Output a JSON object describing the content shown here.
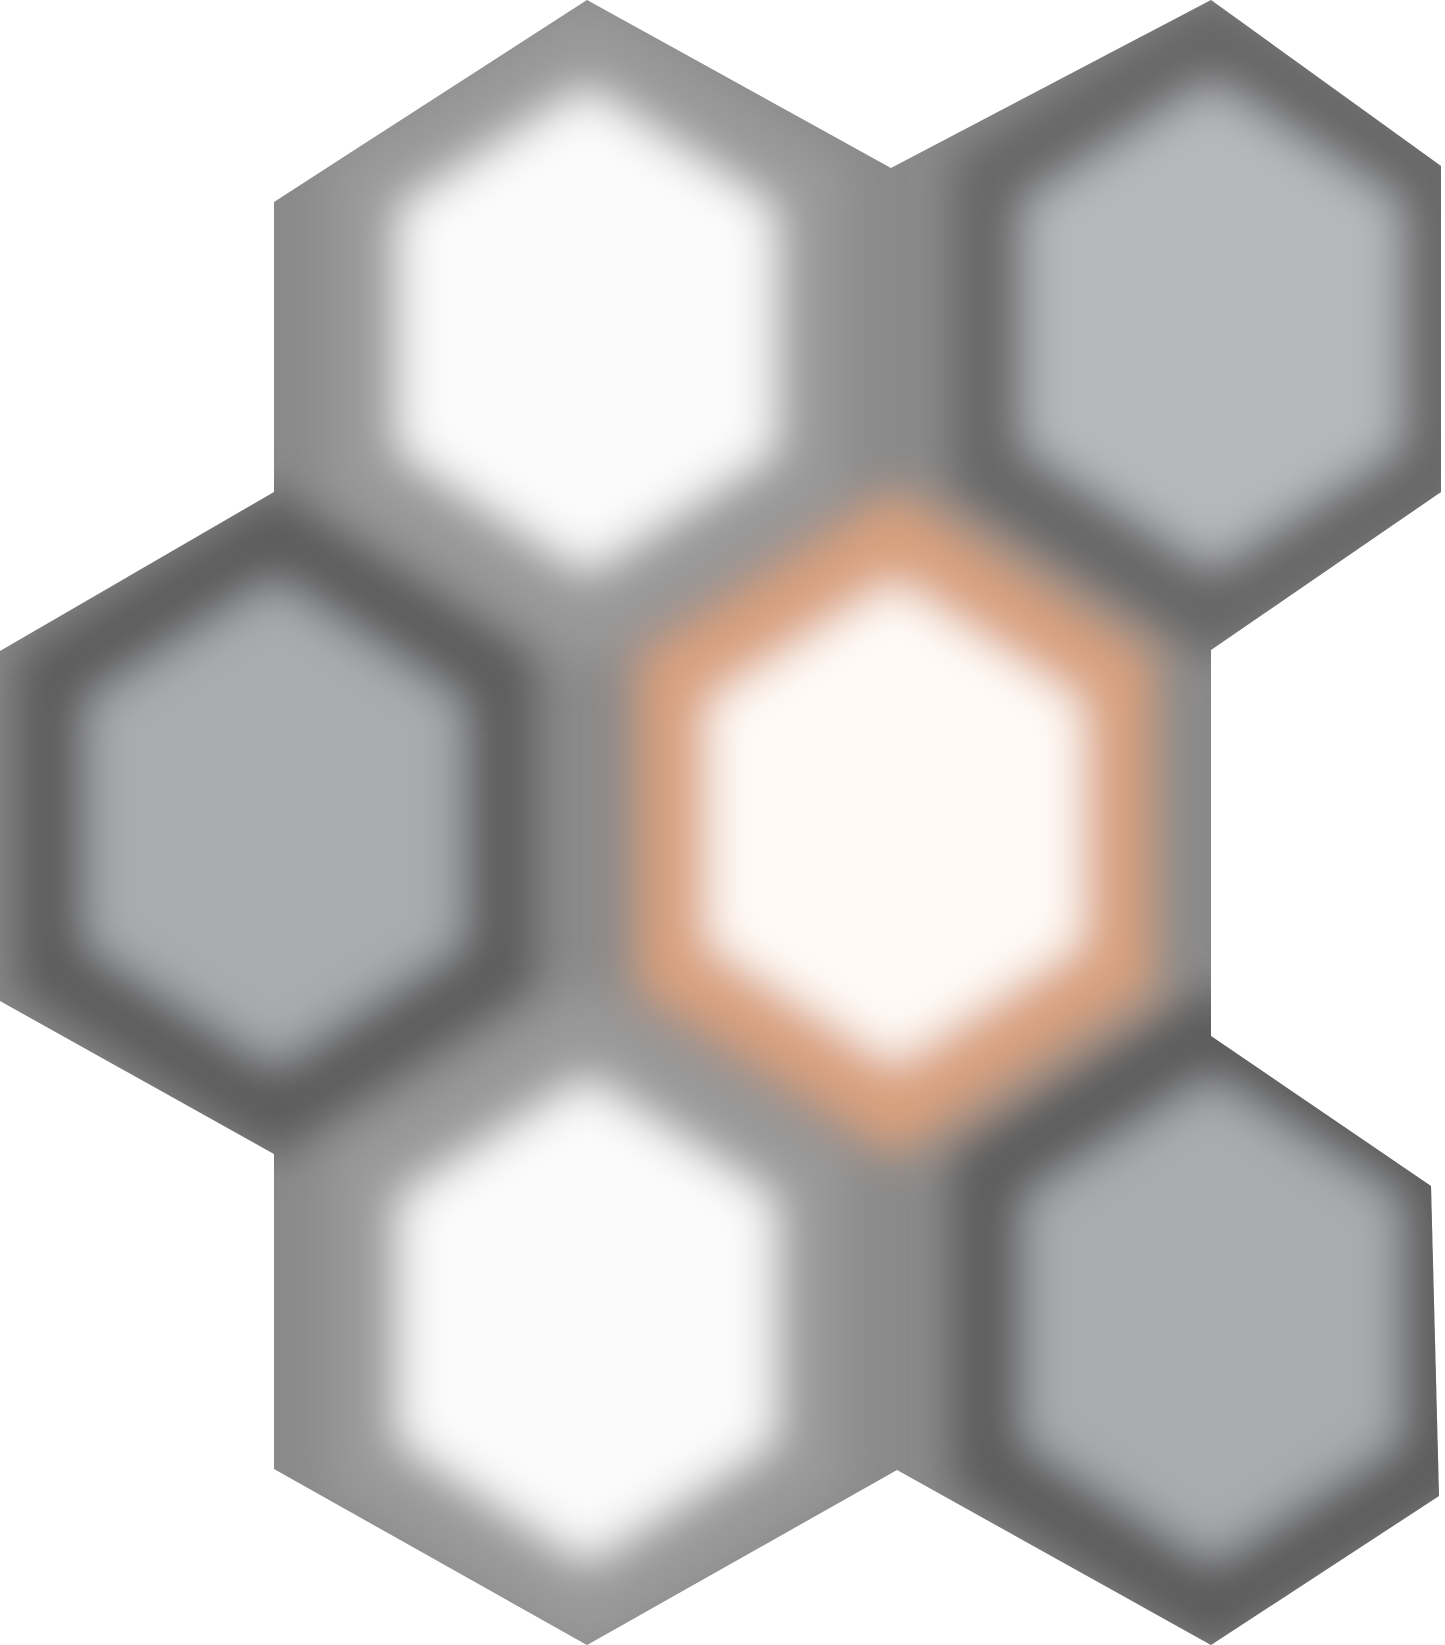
{
  "image": {
    "background": "#ffffff",
    "cells": [
      {
        "name": "hex-top-left",
        "shade": "light",
        "fill": "#fbfbfb",
        "edge": "#9a9a9a"
      },
      {
        "name": "hex-top-right",
        "shade": "grey",
        "fill": "#b6b8bb",
        "edge": "#666666"
      },
      {
        "name": "hex-mid-left",
        "shade": "grey",
        "fill": "#a9abaf",
        "edge": "#5c5c5c"
      },
      {
        "name": "hex-center",
        "shade": "highlighted",
        "fill": "#fffaf6",
        "edge": "#d9a07e"
      },
      {
        "name": "hex-bottom-left",
        "shade": "light",
        "fill": "#fbfbfb",
        "edge": "#9a9a9a"
      },
      {
        "name": "hex-bottom-right",
        "shade": "grey",
        "fill": "#a9abaf",
        "edge": "#5c5c5c"
      }
    ]
  }
}
